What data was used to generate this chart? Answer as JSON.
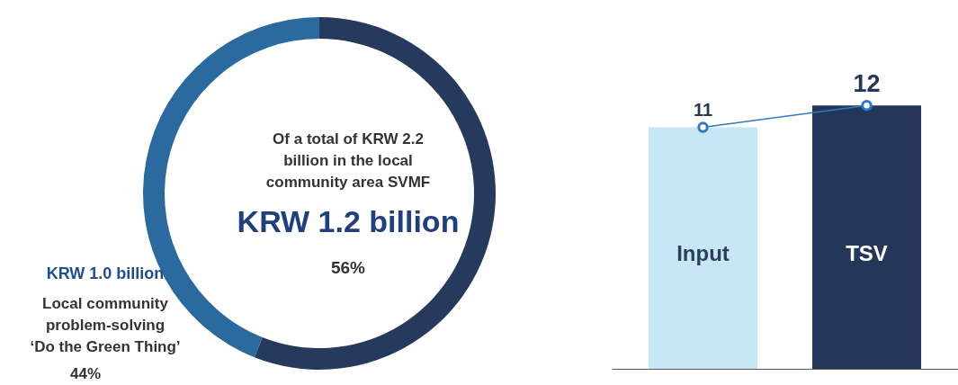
{
  "chart_data": [
    {
      "type": "donut",
      "categories": [
        "KRW 1.2 billion",
        "KRW 1.0 billion"
      ],
      "values": [
        56,
        44
      ],
      "colors": [
        "#263a5e",
        "#2a6a9e"
      ],
      "value_labels": [
        "56%",
        "44%"
      ],
      "annotations": [
        "Of a total of KRW 2.2 billion in the local community area SVMF",
        "Local community problem-solving ‘Do the Green Thing’"
      ]
    },
    {
      "type": "bar",
      "categories": [
        "Input",
        "TSV"
      ],
      "marker": "circle",
      "series": [
        {
          "type": "bar",
          "colors": [
            "#c8e7f6",
            "#24365a"
          ],
          "values": [
            11,
            12
          ]
        },
        {
          "type": "line",
          "color": "#2f7bbf",
          "values": [
            11,
            12
          ],
          "value_labels": [
            "11",
            "12"
          ]
        }
      ]
    }
  ]
}
